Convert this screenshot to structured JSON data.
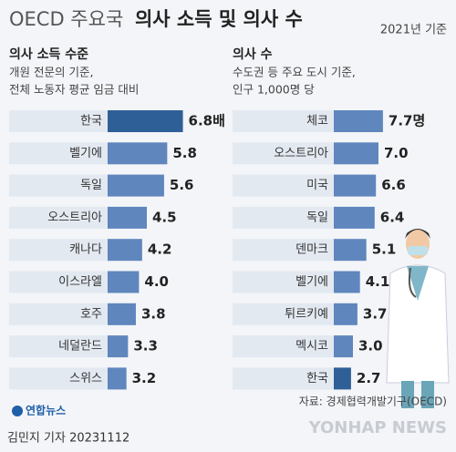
{
  "header": {
    "title_light": "OECD 주요국",
    "title_bold": "의사 소득 및 의사 수",
    "date": "2021년 기준"
  },
  "chart_data": [
    {
      "type": "bar",
      "title": "의사 소득 수준",
      "subtitle": [
        "개원 전문의 기준,",
        "전체 노동자 평균 임금 대비"
      ],
      "categories": [
        "한국",
        "벨기에",
        "독일",
        "오스트리아",
        "캐나다",
        "이스라엘",
        "호주",
        "네덜란드",
        "스위스"
      ],
      "values": [
        6.8,
        5.8,
        5.6,
        4.5,
        4.2,
        4.0,
        3.8,
        3.3,
        3.2
      ],
      "value_labels": [
        "6.8배",
        "5.8",
        "5.6",
        "4.5",
        "4.2",
        "4.0",
        "3.8",
        "3.3",
        "3.2"
      ],
      "colors": [
        "#2f5f97",
        "#5f86bd",
        "#5f86bd",
        "#5f86bd",
        "#5f86bd",
        "#5f86bd",
        "#5f86bd",
        "#5f86bd",
        "#5f86bd"
      ],
      "xlim": [
        2,
        7
      ]
    },
    {
      "type": "bar",
      "title": "의사 수",
      "subtitle": [
        "수도권 등 주요 도시 기준,",
        "인구 1,000명 당"
      ],
      "categories": [
        "체코",
        "오스트리아",
        "미국",
        "독일",
        "덴마크",
        "벨기에",
        "튀르키예",
        "멕시코",
        "한국"
      ],
      "values": [
        7.7,
        7.0,
        6.6,
        6.4,
        5.1,
        4.1,
        3.7,
        3.0,
        2.7
      ],
      "value_labels": [
        "7.7명",
        "7.0",
        "6.6",
        "6.4",
        "5.1",
        "4.1",
        "3.7",
        "3.0",
        "2.7"
      ],
      "colors": [
        "#5f86bd",
        "#5f86bd",
        "#5f86bd",
        "#5f86bd",
        "#5f86bd",
        "#5f86bd",
        "#5f86bd",
        "#5f86bd",
        "#2f5f97"
      ],
      "xlim": [
        0,
        8
      ]
    }
  ],
  "footer": {
    "source": "자료: 경제협력개발기구(OECD)",
    "logo": "연합뉴스",
    "credit": "김민지 기자  20231112",
    "watermark": "YONHAP NEWS"
  }
}
